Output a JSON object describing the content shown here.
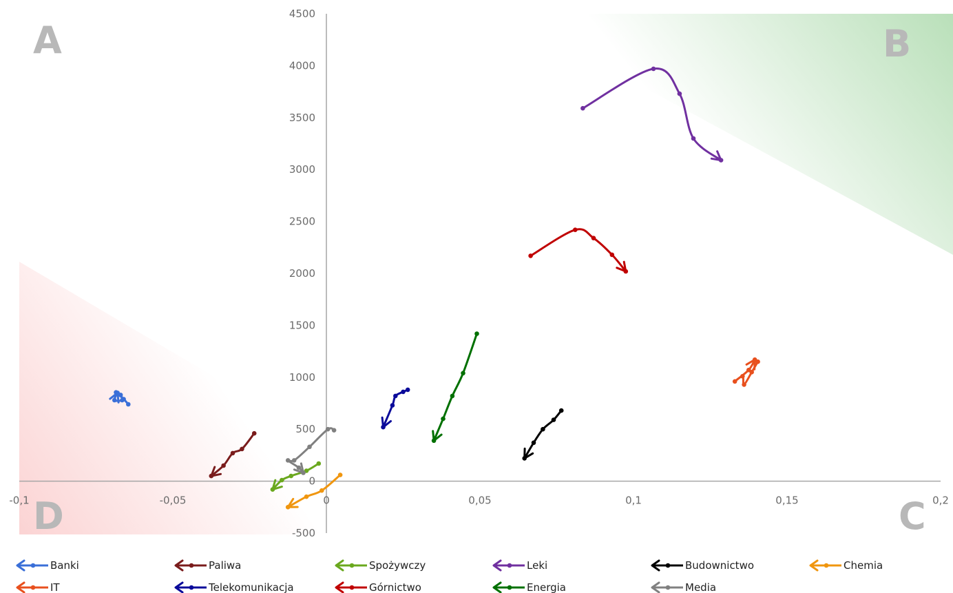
{
  "chart_data": {
    "type": "scatter",
    "title": "",
    "xlabel": "",
    "ylabel": "",
    "xlim": [
      -0.1,
      0.2
    ],
    "ylim": [
      -500,
      4500
    ],
    "x_ticks": [
      -0.1,
      -0.05,
      0,
      0.05,
      0.1,
      0.15,
      0.2
    ],
    "x_tick_labels": [
      "-0,1",
      "-0,05",
      "0",
      "0,05",
      "0,1",
      "0,15",
      "0,2"
    ],
    "y_ticks": [
      -500,
      0,
      500,
      1000,
      1500,
      2000,
      2500,
      3000,
      3500,
      4000,
      4500
    ],
    "y_tick_labels": [
      "-500",
      "0",
      "500",
      "1000",
      "1500",
      "2000",
      "2500",
      "3000",
      "3500",
      "4000",
      "4500"
    ],
    "grid": false,
    "legend_position": "bottom",
    "quadrants": [
      {
        "label": "A",
        "corner": "top-left"
      },
      {
        "label": "B",
        "corner": "top-right",
        "shade": "#2ca02c"
      },
      {
        "label": "C",
        "corner": "bottom-right"
      },
      {
        "label": "D",
        "corner": "bottom-left",
        "shade": "#f08080"
      }
    ],
    "series": [
      {
        "name": "Banki",
        "color": "#3a6fd8",
        "points": [
          [
            -0.0645,
            740
          ],
          [
            -0.066,
            790
          ],
          [
            -0.0685,
            855
          ],
          [
            -0.067,
            830
          ],
          [
            -0.0665,
            780
          ],
          [
            -0.069,
            780
          ],
          [
            -0.068,
            850
          ]
        ]
      },
      {
        "name": "Paliwa",
        "color": "#7a1c1c",
        "points": [
          [
            -0.0235,
            460
          ],
          [
            -0.0275,
            310
          ],
          [
            -0.0305,
            270
          ],
          [
            -0.0335,
            150
          ],
          [
            -0.0375,
            50
          ]
        ]
      },
      {
        "name": "Spożywczy",
        "color": "#6aa81e",
        "points": [
          [
            -0.0025,
            170
          ],
          [
            -0.0065,
            100
          ],
          [
            -0.0115,
            50
          ],
          [
            -0.0145,
            10
          ],
          [
            -0.0175,
            -80
          ]
        ]
      },
      {
        "name": "Leki",
        "color": "#7030a0",
        "points": [
          [
            0.0835,
            3590
          ],
          [
            0.1065,
            3970
          ],
          [
            0.115,
            3730
          ],
          [
            0.1195,
            3300
          ],
          [
            0.1285,
            3090
          ]
        ]
      },
      {
        "name": "Budownictwo",
        "color": "#000000",
        "points": [
          [
            0.0765,
            680
          ],
          [
            0.074,
            590
          ],
          [
            0.0705,
            500
          ],
          [
            0.0675,
            370
          ],
          [
            0.0645,
            220
          ]
        ]
      },
      {
        "name": "Chemia",
        "color": "#f0960f",
        "points": [
          [
            0.0045,
            60
          ],
          [
            -0.0015,
            -90
          ],
          [
            -0.0065,
            -150
          ],
          [
            -0.0125,
            -250
          ]
        ]
      },
      {
        "name": "IT",
        "color": "#e8501e",
        "points": [
          [
            0.1405,
            1150
          ],
          [
            0.1385,
            1050
          ],
          [
            0.136,
            930
          ],
          [
            0.1355,
            1010
          ],
          [
            0.133,
            960
          ],
          [
            0.1375,
            1070
          ],
          [
            0.1395,
            1170
          ]
        ]
      },
      {
        "name": "Telekomunikacja",
        "color": "#0a0a9a",
        "points": [
          [
            0.0265,
            880
          ],
          [
            0.025,
            860
          ],
          [
            0.0225,
            820
          ],
          [
            0.0215,
            730
          ],
          [
            0.0185,
            520
          ]
        ]
      },
      {
        "name": "Górnictwo",
        "color": "#c00000",
        "points": [
          [
            0.0665,
            2170
          ],
          [
            0.081,
            2420
          ],
          [
            0.087,
            2340
          ],
          [
            0.093,
            2180
          ],
          [
            0.0975,
            2020
          ]
        ]
      },
      {
        "name": "Energia",
        "color": "#007000",
        "points": [
          [
            0.049,
            1420
          ],
          [
            0.0445,
            1040
          ],
          [
            0.041,
            820
          ],
          [
            0.038,
            600
          ],
          [
            0.035,
            390
          ]
        ]
      },
      {
        "name": "Media",
        "color": "#808080",
        "points": [
          [
            0.0025,
            490
          ],
          [
            0.0005,
            500
          ],
          [
            -0.0055,
            330
          ],
          [
            -0.0105,
            200
          ],
          [
            -0.0125,
            200
          ],
          [
            -0.009,
            130
          ],
          [
            -0.0075,
            80
          ]
        ]
      }
    ]
  }
}
